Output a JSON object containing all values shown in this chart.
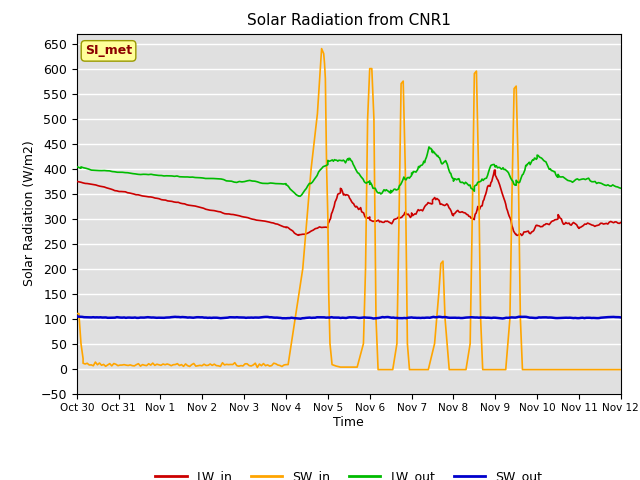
{
  "title": "Solar Radiation from CNR1",
  "xlabel": "Time",
  "ylabel": "Solar Radiation (W/m2)",
  "ylim": [
    -50,
    670
  ],
  "yticks": [
    -50,
    0,
    50,
    100,
    150,
    200,
    250,
    300,
    350,
    400,
    450,
    500,
    550,
    600,
    650
  ],
  "plot_bg_color": "#e0e0e0",
  "fig_bg_color": "#ffffff",
  "grid_color": "#ffffff",
  "annotation_text": "SI_met",
  "annotation_color": "#8b0000",
  "annotation_bg": "#ffff99",
  "annotation_border": "#999900",
  "series": {
    "LW_in": {
      "color": "#cc0000",
      "lw": 1.2
    },
    "SW_in": {
      "color": "#ffa500",
      "lw": 1.2
    },
    "LW_out": {
      "color": "#00bb00",
      "lw": 1.2
    },
    "SW_out": {
      "color": "#0000cc",
      "lw": 1.8
    }
  },
  "xtick_labels": [
    "Oct 30",
    "Oct 31",
    "Nov 1",
    "Nov 2",
    "Nov 3",
    "Nov 4",
    "Nov 5",
    "Nov 6",
    "Nov 7",
    "Nov 8",
    "Nov 9",
    "Nov 10",
    "Nov 11",
    "Nov 12"
  ],
  "xtick_pos": [
    0,
    1,
    2,
    3,
    4,
    5,
    6,
    7,
    8,
    9,
    10,
    11,
    12,
    13
  ]
}
